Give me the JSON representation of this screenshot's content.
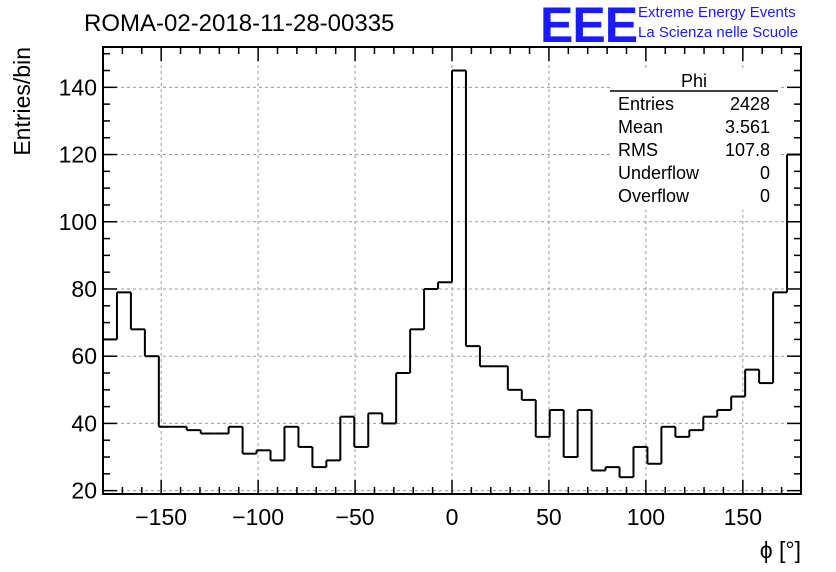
{
  "chart_data": {
    "type": "bar",
    "title": "ROMA-02-2018-11-28-00335",
    "xlabel": "ϕ [°]",
    "ylabel": "Entries/bin",
    "xlim": [
      -180,
      180
    ],
    "ylim": [
      19,
      152
    ],
    "bin_width": 7.2,
    "grid": true,
    "x_ticks": [
      -150,
      -100,
      -50,
      0,
      50,
      100,
      150
    ],
    "x_tick_labels": [
      "−150",
      "−100",
      "−50",
      "0",
      "50",
      "100",
      "150"
    ],
    "y_ticks": [
      20,
      40,
      60,
      80,
      100,
      120,
      140
    ],
    "y_tick_labels": [
      "20",
      "40",
      "60",
      "80",
      "100",
      "120",
      "140"
    ],
    "values": [
      65,
      79,
      68,
      60,
      39,
      39,
      38,
      37,
      37,
      39,
      31,
      32,
      29,
      39,
      33,
      27,
      29,
      42,
      33,
      43,
      40,
      55,
      68,
      80,
      82,
      145,
      63,
      57,
      57,
      50,
      47,
      36,
      44,
      30,
      44,
      26,
      27,
      24,
      33,
      28,
      39,
      36,
      38,
      42,
      44,
      48,
      56,
      52,
      79,
      120
    ],
    "stats_box": {
      "title": "Phi",
      "rows": [
        {
          "label": "Entries",
          "value": "2428"
        },
        {
          "label": "Mean",
          "value": "3.561"
        },
        {
          "label": "RMS",
          "value": "107.8"
        },
        {
          "label": "Underflow",
          "value": "0"
        },
        {
          "label": "Overflow",
          "value": "0"
        }
      ]
    }
  },
  "logo": {
    "text": "EEE",
    "line1": "Extreme Energy Events",
    "line2": "La Scienza nelle Scuole",
    "color": "#1a1aff"
  }
}
